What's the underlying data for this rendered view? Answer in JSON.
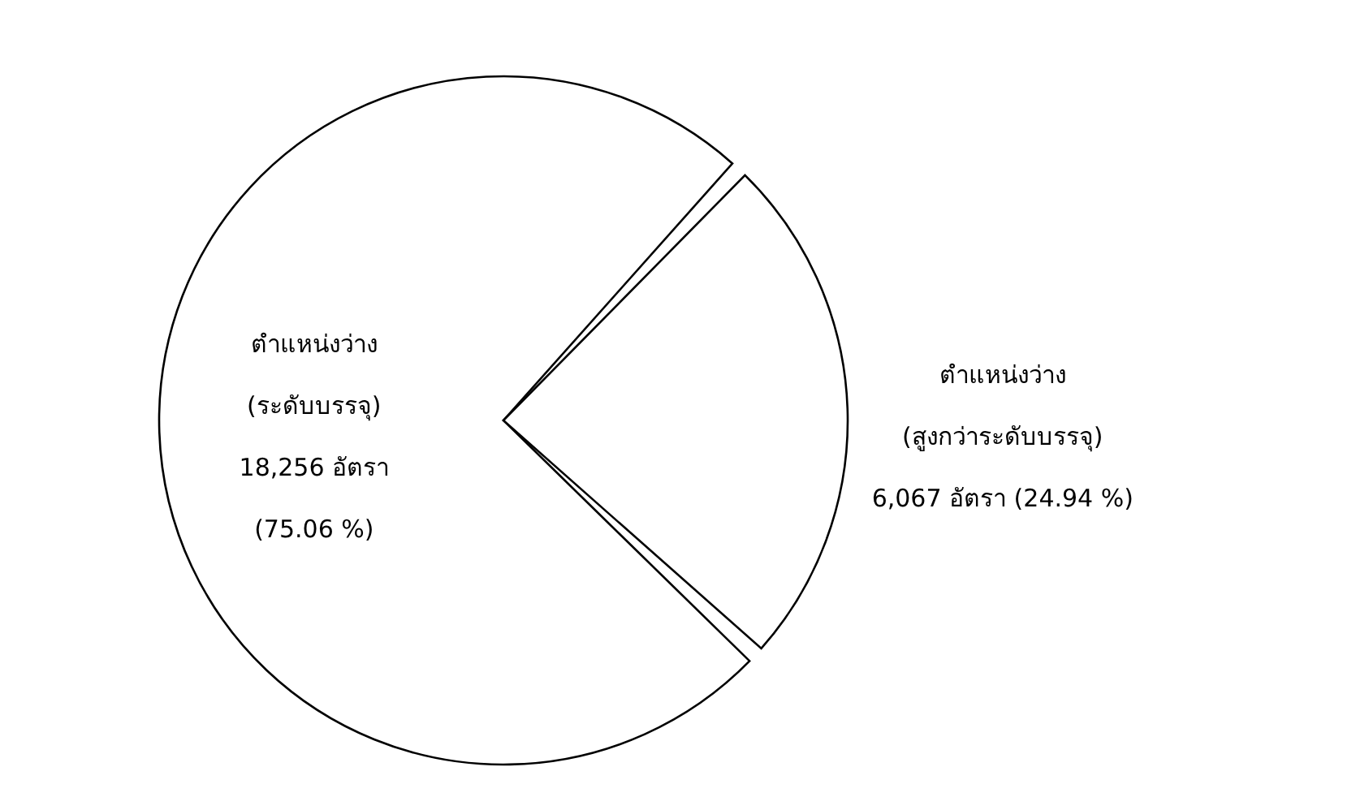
{
  "chart_data": {
    "type": "pie",
    "categories": [
      "ตำแหน่งว่าง (ระดับบรรจุ)",
      "ตำแหน่งว่าง (สูงกว่าระดับบรรจุ)"
    ],
    "values": [
      18256,
      6067
    ],
    "colors": [
      "#ffffff",
      "#ffffff"
    ],
    "value_labels": [
      "18,256 อัตรา (75.06 %)",
      "6,067 อัตรา (24.94 %)"
    ]
  }
}
